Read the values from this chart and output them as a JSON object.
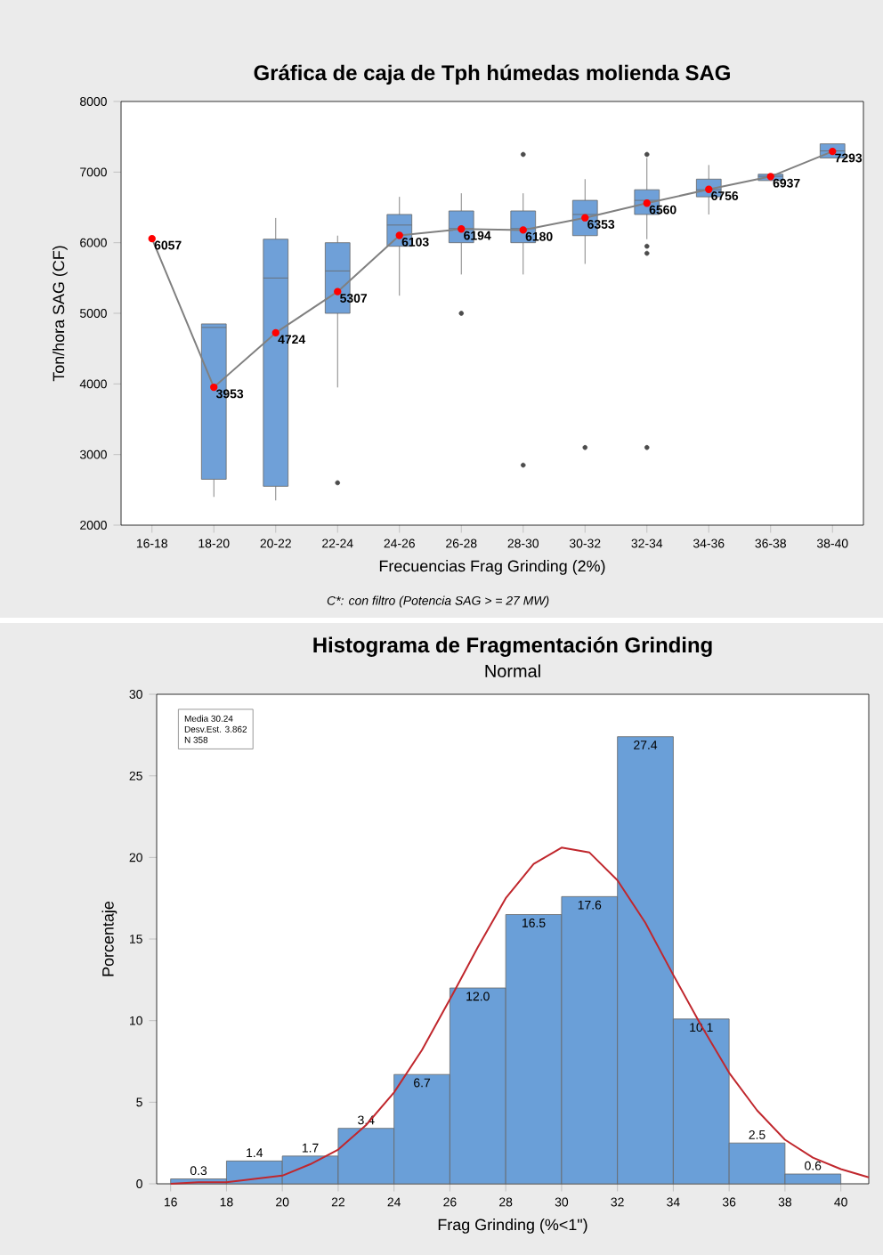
{
  "chart_data": [
    {
      "type": "box",
      "title": "Gráfica de caja de Tph húmedas molienda SAG",
      "xlabel": "Frecuencias Frag Grinding (2%)",
      "ylabel": "Ton/hora SAG (CF)",
      "categories": [
        "16-18",
        "18-20",
        "20-22",
        "22-24",
        "24-26",
        "26-28",
        "28-30",
        "30-32",
        "32-34",
        "34-36",
        "36-38",
        "38-40"
      ],
      "ylim": [
        2000,
        8000
      ],
      "yticks": [
        2000,
        3000,
        4000,
        5000,
        6000,
        7000,
        8000
      ],
      "series": [
        {
          "type": "box",
          "color": "#6fa0d8",
          "boxes": [
            null,
            {
              "low": 2400,
              "q1": 2650,
              "median": 4800,
              "q3": 4850,
              "high": 4850
            },
            {
              "low": 2350,
              "q1": 2550,
              "median": 5500,
              "q3": 6050,
              "high": 6350
            },
            {
              "low": 3950,
              "q1": 5000,
              "median": 5600,
              "q3": 6000,
              "high": 6100,
              "outliers": [
                2600
              ]
            },
            {
              "low": 5250,
              "q1": 5950,
              "median": 6250,
              "q3": 6400,
              "high": 6650
            },
            {
              "low": 5550,
              "q1": 6000,
              "median": 6200,
              "q3": 6450,
              "high": 6700,
              "outliers": [
                5000
              ]
            },
            {
              "low": 5550,
              "q1": 6000,
              "median": 6200,
              "q3": 6450,
              "high": 6700,
              "outliers": [
                7250,
                2850
              ]
            },
            {
              "low": 5700,
              "q1": 6100,
              "median": 6400,
              "q3": 6600,
              "high": 6900,
              "outliers": [
                3100
              ]
            },
            {
              "low": 6050,
              "q1": 6400,
              "median": 6600,
              "q3": 6750,
              "high": 7200,
              "outliers": [
                7250,
                5950,
                5850,
                3100
              ]
            },
            {
              "low": 6400,
              "q1": 6650,
              "median": 6750,
              "q3": 6900,
              "high": 7100
            },
            {
              "low": 6880,
              "q1": 6880,
              "median": 6940,
              "q3": 6970,
              "high": 6970
            },
            {
              "low": 7200,
              "q1": 7200,
              "median": 7300,
              "q3": 7400,
              "high": 7400
            }
          ]
        },
        {
          "type": "line",
          "color": "#808080",
          "marker": "circle",
          "values": [
            6057,
            3953,
            4724,
            5307,
            6103,
            6194,
            6180,
            6353,
            6560,
            6756,
            6937,
            7293
          ],
          "value_labels": [
            "6057",
            "3953",
            "4724",
            "5307",
            "6103",
            "6194",
            "6180",
            "6353",
            "6560",
            "6756",
            "6937",
            "7293"
          ]
        }
      ],
      "annotations": [
        "C*: con filtro (Potencia SAG > = 27 MW)"
      ]
    },
    {
      "type": "histogram",
      "title": "Histograma de Fragmentación Grinding",
      "subtitle": "Normal",
      "xlabel": "Frag Grinding (%<1\")",
      "ylabel": "Porcentaje",
      "xlim": [
        15.5,
        41
      ],
      "xticks": [
        16,
        18,
        20,
        22,
        24,
        26,
        28,
        30,
        32,
        34,
        36,
        38,
        40
      ],
      "ylim": [
        0,
        30
      ],
      "yticks": [
        0,
        5,
        10,
        15,
        20,
        25,
        30
      ],
      "series": [
        {
          "type": "histogram",
          "color": "#6a9fd8",
          "bins": [
            16,
            18,
            20,
            22,
            24,
            26,
            28,
            30,
            32,
            34,
            36,
            38,
            40
          ],
          "values": [
            0.3,
            1.4,
            1.7,
            3.4,
            6.7,
            12.0,
            16.5,
            17.6,
            27.4,
            10.1,
            2.5,
            0.6
          ],
          "value_labels": [
            "0.3",
            "1.4",
            "1.7",
            "3.4",
            "6.7",
            "12.0",
            "16.5",
            "17.6",
            "27.4",
            "10.1",
            "2.5",
            "0.6"
          ]
        },
        {
          "type": "line",
          "color": "#c0272d",
          "marker": "none",
          "x": [
            16,
            17,
            18,
            19,
            20,
            21,
            22,
            23,
            24,
            25,
            26,
            27,
            28,
            29,
            30,
            31,
            32,
            33,
            34,
            35,
            36,
            37,
            38,
            39,
            40,
            41
          ],
          "values": [
            0.0,
            0.1,
            0.1,
            0.3,
            0.5,
            1.2,
            2.1,
            3.6,
            5.6,
            8.2,
            11.3,
            14.5,
            17.5,
            19.6,
            20.6,
            20.3,
            18.6,
            16.0,
            12.8,
            9.7,
            6.8,
            4.5,
            2.7,
            1.6,
            0.9,
            0.4
          ]
        }
      ],
      "annotations": [
        "Media 30.24",
        "Desv.Est. 3.862",
        "N 358"
      ]
    }
  ]
}
